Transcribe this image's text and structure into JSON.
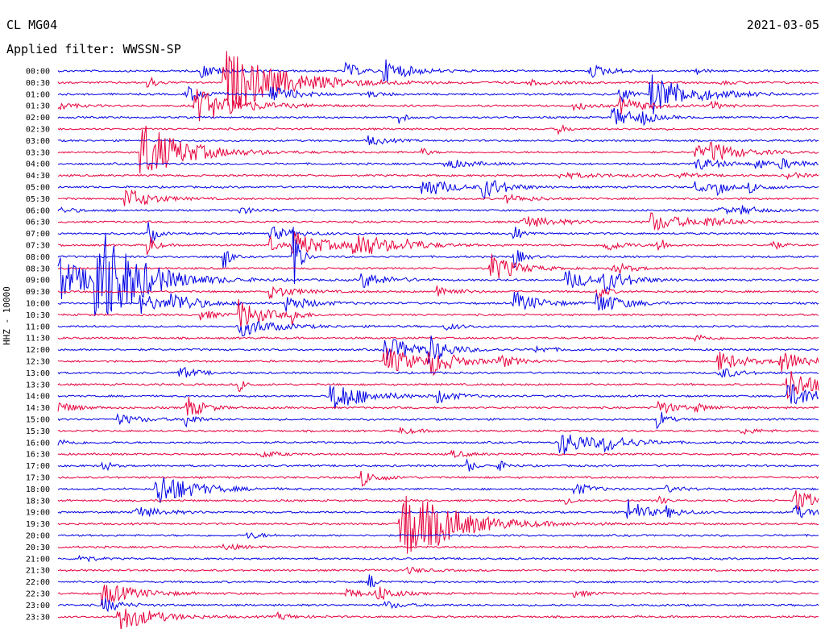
{
  "header": {
    "station": "CL MG04",
    "date": "2021-03-05",
    "filter": "Applied filter: WWSSN-SP",
    "ylabel": "HHZ - 10000"
  },
  "colors": {
    "even": "#0000e6",
    "odd": "#e6003c"
  },
  "chart_data": {
    "type": "line",
    "title": "CL MG04",
    "subtitle": "Applied filter: WWSSN-SP",
    "ylabel": "HHZ - 10000",
    "xlim_minutes": [
      0,
      30
    ],
    "row_labels": [
      "00:00",
      "00:30",
      "01:00",
      "01:30",
      "02:00",
      "02:30",
      "03:00",
      "03:30",
      "04:00",
      "04:30",
      "05:00",
      "05:30",
      "06:00",
      "06:30",
      "07:00",
      "07:30",
      "08:00",
      "08:30",
      "09:00",
      "09:30",
      "10:00",
      "10:30",
      "11:00",
      "11:30",
      "12:00",
      "12:30",
      "13:00",
      "13:30",
      "14:00",
      "14:30",
      "15:00",
      "15:30",
      "16:00",
      "16:30",
      "17:00",
      "17:30",
      "18:00",
      "18:30",
      "19:00",
      "19:30",
      "20:00",
      "20:30",
      "21:00",
      "21:30",
      "22:00",
      "22:30",
      "23:00",
      "23:30"
    ],
    "events": [
      {
        "row": 0,
        "t": 0.19,
        "a": 8,
        "d": 0.025
      },
      {
        "row": 0,
        "t": 0.38,
        "a": 10,
        "d": 0.015
      },
      {
        "row": 0,
        "t": 0.43,
        "a": 14,
        "d": 0.03
      },
      {
        "row": 0,
        "t": 0.7,
        "a": 8,
        "d": 0.025
      },
      {
        "row": 0,
        "t": 0.84,
        "a": 4,
        "d": 0.01
      },
      {
        "row": 1,
        "t": 0.22,
        "a": 40,
        "d": 0.07
      },
      {
        "row": 1,
        "t": 0.12,
        "a": 8,
        "d": 0.01
      },
      {
        "row": 1,
        "t": 0.62,
        "a": 3,
        "d": 0.03
      },
      {
        "row": 1,
        "t": 0.87,
        "a": 2,
        "d": 0.03
      },
      {
        "row": 2,
        "t": 0.17,
        "a": 10,
        "d": 0.02
      },
      {
        "row": 2,
        "t": 0.28,
        "a": 10,
        "d": 0.03
      },
      {
        "row": 2,
        "t": 0.41,
        "a": 3,
        "d": 0.02
      },
      {
        "row": 2,
        "t": 0.74,
        "a": 12,
        "d": 0.01
      },
      {
        "row": 2,
        "t": 0.78,
        "a": 25,
        "d": 0.05
      },
      {
        "row": 3,
        "t": 0.0,
        "a": 5,
        "d": 0.02
      },
      {
        "row": 3,
        "t": 0.18,
        "a": 22,
        "d": 0.05
      },
      {
        "row": 3,
        "t": 0.68,
        "a": 5,
        "d": 0.02
      },
      {
        "row": 3,
        "t": 0.74,
        "a": 10,
        "d": 0.03
      },
      {
        "row": 3,
        "t": 0.86,
        "a": 5,
        "d": 0.015
      },
      {
        "row": 4,
        "t": 0.45,
        "a": 8,
        "d": 0.006
      },
      {
        "row": 4,
        "t": 0.73,
        "a": 12,
        "d": 0.03
      },
      {
        "row": 4,
        "t": 0.77,
        "a": 6,
        "d": 0.01
      },
      {
        "row": 5,
        "t": 0.66,
        "a": 5,
        "d": 0.01
      },
      {
        "row": 6,
        "t": 0.41,
        "a": 6,
        "d": 0.02
      },
      {
        "row": 7,
        "t": 0.11,
        "a": 38,
        "d": 0.05
      },
      {
        "row": 7,
        "t": 0.48,
        "a": 5,
        "d": 0.008
      },
      {
        "row": 7,
        "t": 0.84,
        "a": 8,
        "d": 0.02
      },
      {
        "row": 7,
        "t": 0.86,
        "a": 10,
        "d": 0.04
      },
      {
        "row": 8,
        "t": 0.51,
        "a": 6,
        "d": 0.03
      },
      {
        "row": 8,
        "t": 0.84,
        "a": 8,
        "d": 0.03
      },
      {
        "row": 8,
        "t": 0.92,
        "a": 8,
        "d": 0.01
      },
      {
        "row": 8,
        "t": 0.95,
        "a": 6,
        "d": 0.03
      },
      {
        "row": 9,
        "t": 0.66,
        "a": 3,
        "d": 0.06
      },
      {
        "row": 9,
        "t": 0.82,
        "a": 3,
        "d": 0.02
      },
      {
        "row": 9,
        "t": 0.96,
        "a": 4,
        "d": 0.02
      },
      {
        "row": 10,
        "t": 0.48,
        "a": 14,
        "d": 0.03
      },
      {
        "row": 10,
        "t": 0.56,
        "a": 14,
        "d": 0.025
      },
      {
        "row": 10,
        "t": 0.84,
        "a": 6,
        "d": 0.02
      },
      {
        "row": 10,
        "t": 0.87,
        "a": 8,
        "d": 0.01
      },
      {
        "row": 10,
        "t": 0.91,
        "a": 6,
        "d": 0.02
      },
      {
        "row": 11,
        "t": 0.09,
        "a": 14,
        "d": 0.03
      },
      {
        "row": 11,
        "t": 0.59,
        "a": 5,
        "d": 0.03
      },
      {
        "row": 12,
        "t": 0.0,
        "a": 4,
        "d": 0.02
      },
      {
        "row": 12,
        "t": 0.24,
        "a": 4,
        "d": 0.02
      },
      {
        "row": 12,
        "t": 0.87,
        "a": 4,
        "d": 0.03
      },
      {
        "row": 12,
        "t": 0.9,
        "a": 4,
        "d": 0.02
      },
      {
        "row": 13,
        "t": 0.61,
        "a": 8,
        "d": 0.04
      },
      {
        "row": 13,
        "t": 0.78,
        "a": 12,
        "d": 0.04
      },
      {
        "row": 13,
        "t": 0.85,
        "a": 5,
        "d": 0.03
      },
      {
        "row": 14,
        "t": 0.12,
        "a": 16,
        "d": 0.008
      },
      {
        "row": 14,
        "t": 0.28,
        "a": 8,
        "d": 0.03
      },
      {
        "row": 14,
        "t": 0.6,
        "a": 14,
        "d": 0.006
      },
      {
        "row": 15,
        "t": 0.12,
        "a": 14,
        "d": 0.008
      },
      {
        "row": 15,
        "t": 0.28,
        "a": 10,
        "d": 0.01
      },
      {
        "row": 15,
        "t": 0.31,
        "a": 16,
        "d": 0.04
      },
      {
        "row": 15,
        "t": 0.39,
        "a": 16,
        "d": 0.04
      },
      {
        "row": 15,
        "t": 0.46,
        "a": 5,
        "d": 0.02
      },
      {
        "row": 15,
        "t": 0.72,
        "a": 8,
        "d": 0.02
      },
      {
        "row": 15,
        "t": 0.79,
        "a": 12,
        "d": 0.008
      },
      {
        "row": 15,
        "t": 0.94,
        "a": 6,
        "d": 0.01
      },
      {
        "row": 16,
        "t": 0.22,
        "a": 16,
        "d": 0.006
      },
      {
        "row": 16,
        "t": 0.31,
        "a": 60,
        "d": 0.006
      },
      {
        "row": 16,
        "t": 0.6,
        "a": 14,
        "d": 0.01
      },
      {
        "row": 17,
        "t": 0.57,
        "a": 18,
        "d": 0.03
      },
      {
        "row": 17,
        "t": 0.73,
        "a": 8,
        "d": 0.02
      },
      {
        "row": 18,
        "t": 0.0,
        "a": 30,
        "d": 0.04
      },
      {
        "row": 18,
        "t": 0.05,
        "a": 70,
        "d": 0.05
      },
      {
        "row": 18,
        "t": 0.4,
        "a": 10,
        "d": 0.03
      },
      {
        "row": 18,
        "t": 0.67,
        "a": 12,
        "d": 0.03
      },
      {
        "row": 18,
        "t": 0.72,
        "a": 12,
        "d": 0.03
      },
      {
        "row": 19,
        "t": 0.28,
        "a": 8,
        "d": 0.03
      },
      {
        "row": 19,
        "t": 0.5,
        "a": 8,
        "d": 0.02
      },
      {
        "row": 19,
        "t": 0.71,
        "a": 10,
        "d": 0.01
      },
      {
        "row": 20,
        "t": 0.11,
        "a": 12,
        "d": 0.03
      },
      {
        "row": 20,
        "t": 0.15,
        "a": 12,
        "d": 0.03
      },
      {
        "row": 20,
        "t": 0.3,
        "a": 10,
        "d": 0.03
      },
      {
        "row": 20,
        "t": 0.6,
        "a": 14,
        "d": 0.03
      },
      {
        "row": 20,
        "t": 0.71,
        "a": 14,
        "d": 0.03
      },
      {
        "row": 21,
        "t": 0.19,
        "a": 6,
        "d": 0.02
      },
      {
        "row": 21,
        "t": 0.24,
        "a": 18,
        "d": 0.03
      },
      {
        "row": 21,
        "t": 0.31,
        "a": 10,
        "d": 0.008
      },
      {
        "row": 22,
        "t": 0.24,
        "a": 12,
        "d": 0.04
      },
      {
        "row": 22,
        "t": 0.51,
        "a": 4,
        "d": 0.02
      },
      {
        "row": 23,
        "t": 0.84,
        "a": 4,
        "d": 0.02
      },
      {
        "row": 24,
        "t": 0.43,
        "a": 16,
        "d": 0.04
      },
      {
        "row": 24,
        "t": 0.49,
        "a": 14,
        "d": 0.02
      },
      {
        "row": 24,
        "t": 0.63,
        "a": 4,
        "d": 0.02
      },
      {
        "row": 25,
        "t": 0.43,
        "a": 18,
        "d": 0.04
      },
      {
        "row": 25,
        "t": 0.49,
        "a": 14,
        "d": 0.03
      },
      {
        "row": 25,
        "t": 0.58,
        "a": 8,
        "d": 0.02
      },
      {
        "row": 25,
        "t": 0.87,
        "a": 12,
        "d": 0.03
      },
      {
        "row": 25,
        "t": 0.95,
        "a": 12,
        "d": 0.04
      },
      {
        "row": 26,
        "t": 0.16,
        "a": 8,
        "d": 0.02
      },
      {
        "row": 26,
        "t": 0.87,
        "a": 8,
        "d": 0.02
      },
      {
        "row": 27,
        "t": 0.24,
        "a": 8,
        "d": 0.008
      },
      {
        "row": 27,
        "t": 0.96,
        "a": 20,
        "d": 0.04
      },
      {
        "row": 28,
        "t": 0.36,
        "a": 20,
        "d": 0.04
      },
      {
        "row": 28,
        "t": 0.5,
        "a": 8,
        "d": 0.02
      },
      {
        "row": 28,
        "t": 0.96,
        "a": 16,
        "d": 0.04
      },
      {
        "row": 29,
        "t": 0.0,
        "a": 8,
        "d": 0.02
      },
      {
        "row": 29,
        "t": 0.17,
        "a": 14,
        "d": 0.02
      },
      {
        "row": 29,
        "t": 0.79,
        "a": 10,
        "d": 0.02
      },
      {
        "row": 29,
        "t": 0.84,
        "a": 4,
        "d": 0.02
      },
      {
        "row": 30,
        "t": 0.08,
        "a": 6,
        "d": 0.03
      },
      {
        "row": 30,
        "t": 0.17,
        "a": 10,
        "d": 0.01
      },
      {
        "row": 30,
        "t": 0.79,
        "a": 12,
        "d": 0.01
      },
      {
        "row": 31,
        "t": 0.45,
        "a": 4,
        "d": 0.02
      },
      {
        "row": 31,
        "t": 0.9,
        "a": 4,
        "d": 0.02
      },
      {
        "row": 32,
        "t": 0.0,
        "a": 4,
        "d": 0.02
      },
      {
        "row": 32,
        "t": 0.66,
        "a": 16,
        "d": 0.04
      },
      {
        "row": 32,
        "t": 0.72,
        "a": 8,
        "d": 0.03
      },
      {
        "row": 33,
        "t": 0.27,
        "a": 4,
        "d": 0.02
      },
      {
        "row": 33,
        "t": 0.52,
        "a": 4,
        "d": 0.02
      },
      {
        "row": 34,
        "t": 0.06,
        "a": 8,
        "d": 0.008
      },
      {
        "row": 34,
        "t": 0.54,
        "a": 8,
        "d": 0.008
      },
      {
        "row": 34,
        "t": 0.58,
        "a": 6,
        "d": 0.01
      },
      {
        "row": 35,
        "t": 0.4,
        "a": 10,
        "d": 0.02
      },
      {
        "row": 36,
        "t": 0.13,
        "a": 24,
        "d": 0.04
      },
      {
        "row": 36,
        "t": 0.68,
        "a": 8,
        "d": 0.02
      },
      {
        "row": 36,
        "t": 0.8,
        "a": 4,
        "d": 0.02
      },
      {
        "row": 37,
        "t": 0.67,
        "a": 6,
        "d": 0.008
      },
      {
        "row": 37,
        "t": 0.79,
        "a": 6,
        "d": 0.008
      },
      {
        "row": 37,
        "t": 0.97,
        "a": 14,
        "d": 0.03
      },
      {
        "row": 38,
        "t": 0.1,
        "a": 8,
        "d": 0.03
      },
      {
        "row": 38,
        "t": 0.75,
        "a": 18,
        "d": 0.02
      },
      {
        "row": 38,
        "t": 0.8,
        "a": 6,
        "d": 0.02
      },
      {
        "row": 38,
        "t": 0.97,
        "a": 8,
        "d": 0.02
      },
      {
        "row": 39,
        "t": 0.45,
        "a": 50,
        "d": 0.06
      },
      {
        "row": 39,
        "t": 0.5,
        "a": 5,
        "d": 0.02
      },
      {
        "row": 40,
        "t": 0.25,
        "a": 4,
        "d": 0.02
      },
      {
        "row": 41,
        "t": 0.22,
        "a": 4,
        "d": 0.02
      },
      {
        "row": 42,
        "t": 0.03,
        "a": 8,
        "d": 0.01
      },
      {
        "row": 43,
        "t": 0.46,
        "a": 4,
        "d": 0.02
      },
      {
        "row": 44,
        "t": 0.41,
        "a": 10,
        "d": 0.008
      },
      {
        "row": 45,
        "t": 0.06,
        "a": 14,
        "d": 0.04
      },
      {
        "row": 45,
        "t": 0.38,
        "a": 6,
        "d": 0.02
      },
      {
        "row": 45,
        "t": 0.42,
        "a": 10,
        "d": 0.02
      },
      {
        "row": 45,
        "t": 0.68,
        "a": 4,
        "d": 0.02
      },
      {
        "row": 46,
        "t": 0.06,
        "a": 10,
        "d": 0.02
      },
      {
        "row": 46,
        "t": 0.43,
        "a": 5,
        "d": 0.02
      },
      {
        "row": 47,
        "t": 0.08,
        "a": 18,
        "d": 0.04
      },
      {
        "row": 47,
        "t": 0.29,
        "a": 4,
        "d": 0.02
      }
    ]
  }
}
